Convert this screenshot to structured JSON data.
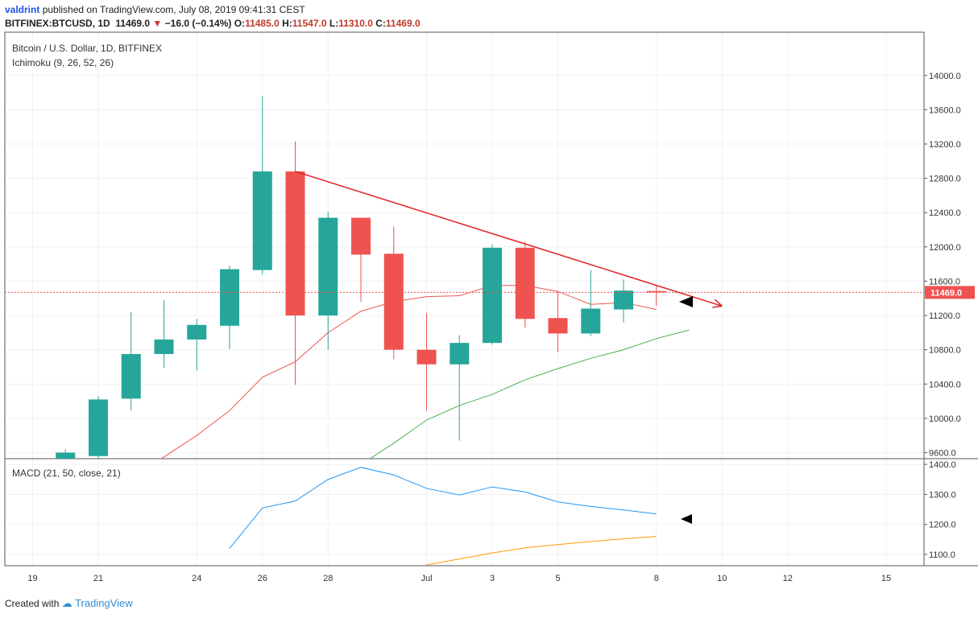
{
  "header": {
    "user": "valdrint",
    "published": "published on TradingView.com, July 08, 2019 09:41:31 CEST",
    "symbol": "BITFINEX:BTCUSD, 1D",
    "last": "11469.0",
    "change_arrow": "▼",
    "change": "−16.0 (−0.14%)",
    "o_label": "O:",
    "o_value": "11485.0",
    "h_label": "H:",
    "h_value": "11547.0",
    "l_label": "L:",
    "l_value": "11310.0",
    "c_label": "C:",
    "c_value": "11469.0"
  },
  "footer": {
    "created_with": "Created with",
    "brand": "TradingView"
  },
  "colors": {
    "up": "#26a69a",
    "down": "#ef5350",
    "tenkan": "#ef5350",
    "kijun": "#4caf50",
    "macd": "#2196f3",
    "signal": "#ff9800",
    "trendline": "#e02020",
    "price_line": "#ef5350"
  },
  "chart_data": [
    {
      "type": "candlestick",
      "title": "Bitcoin / U.S. Dollar, 1D, BITFINEX",
      "indicator_label": "Ichimoku (9, 26, 52, 26)",
      "ylim": [
        9600,
        14000
      ],
      "yticks": [
        9600,
        10000,
        10400,
        10800,
        11200,
        11600,
        12000,
        12400,
        12800,
        13200,
        13600,
        14000
      ],
      "ytick_labels": [
        "9600.0",
        "10000.0",
        "10400.0",
        "10800.0",
        "11200.0",
        "11600.0",
        "12000.0",
        "12400.0",
        "12800.0",
        "13200.0",
        "13600.0",
        "14000.0"
      ],
      "price_label": "11469.0",
      "last_price": 11469,
      "candles": [
        {
          "d": 20,
          "o": 9150,
          "h": 9640,
          "l": 9050,
          "c": 9600
        },
        {
          "d": 21,
          "o": 9560,
          "h": 10260,
          "l": 9500,
          "c": 10220
        },
        {
          "d": 22,
          "o": 10230,
          "h": 11240,
          "l": 10090,
          "c": 10750
        },
        {
          "d": 23,
          "o": 10750,
          "h": 11380,
          "l": 10590,
          "c": 10920
        },
        {
          "d": 24,
          "o": 10920,
          "h": 11160,
          "l": 10560,
          "c": 11090
        },
        {
          "d": 25,
          "o": 11080,
          "h": 11780,
          "l": 10810,
          "c": 11740
        },
        {
          "d": 26,
          "o": 11730,
          "h": 13760,
          "l": 11680,
          "c": 12880
        },
        {
          "d": 27,
          "o": 12880,
          "h": 13230,
          "l": 10390,
          "c": 11200
        },
        {
          "d": 28,
          "o": 11200,
          "h": 12410,
          "l": 10800,
          "c": 12340
        },
        {
          "d": 29,
          "o": 12340,
          "h": 12340,
          "l": 11360,
          "c": 11910
        },
        {
          "d": 30,
          "o": 11920,
          "h": 12240,
          "l": 10690,
          "c": 10800
        },
        {
          "d": 31,
          "o": 10800,
          "h": 11230,
          "l": 10090,
          "c": 10630
        },
        {
          "d": 32,
          "o": 10630,
          "h": 10970,
          "l": 9740,
          "c": 10880
        },
        {
          "d": 33,
          "o": 10880,
          "h": 12030,
          "l": 10860,
          "c": 11990
        },
        {
          "d": 34,
          "o": 11990,
          "h": 12060,
          "l": 11060,
          "c": 11160
        },
        {
          "d": 35,
          "o": 11170,
          "h": 11480,
          "l": 10770,
          "c": 10990
        },
        {
          "d": 36,
          "o": 10990,
          "h": 11730,
          "l": 10960,
          "c": 11280
        },
        {
          "d": 37,
          "o": 11270,
          "h": 11620,
          "l": 11120,
          "c": 11490
        },
        {
          "d": 38,
          "o": 11485,
          "h": 11547,
          "l": 11310,
          "c": 11469
        }
      ],
      "tenkan": [
        [
          22,
          9300
        ],
        [
          23,
          9550
        ],
        [
          24,
          9800
        ],
        [
          25,
          10090
        ],
        [
          26,
          10480
        ],
        [
          27,
          10660
        ],
        [
          28,
          11000
        ],
        [
          29,
          11250
        ],
        [
          30,
          11360
        ],
        [
          31,
          11420
        ],
        [
          32,
          11430
        ],
        [
          33,
          11550
        ],
        [
          34,
          11550
        ],
        [
          35,
          11480
        ],
        [
          36,
          11330
        ],
        [
          37,
          11350
        ],
        [
          38,
          11270
        ]
      ],
      "kijun": [
        [
          29,
          9460
        ],
        [
          30,
          9710
        ],
        [
          31,
          9980
        ],
        [
          32,
          10150
        ],
        [
          33,
          10280
        ],
        [
          34,
          10450
        ],
        [
          35,
          10580
        ],
        [
          36,
          10700
        ],
        [
          37,
          10800
        ],
        [
          38,
          10930
        ],
        [
          39,
          11030
        ]
      ],
      "trendline": {
        "start": [
          27,
          12880
        ],
        "end": [
          40,
          11310
        ]
      }
    },
    {
      "type": "line",
      "title": "MACD (21, 50, close, 21)",
      "ylim": [
        1060,
        1420
      ],
      "yticks": [
        1100,
        1200,
        1300,
        1400
      ],
      "ytick_labels": [
        "1100.0",
        "1200.0",
        "1300.0",
        "1400.0"
      ],
      "series": [
        {
          "values": [
            [
              25,
              1120
            ],
            [
              26,
              1255
            ],
            [
              27,
              1278
            ],
            [
              28,
              1350
            ],
            [
              29,
              1390
            ],
            [
              30,
              1365
            ],
            [
              31,
              1320
            ],
            [
              32,
              1298
            ],
            [
              33,
              1325
            ],
            [
              34,
              1308
            ],
            [
              35,
              1275
            ],
            [
              36,
              1260
            ],
            [
              37,
              1248
            ],
            [
              38,
              1235
            ]
          ]
        },
        {
          "values": [
            [
              31,
              1065
            ],
            [
              32,
              1085
            ],
            [
              33,
              1105
            ],
            [
              34,
              1122
            ],
            [
              35,
              1133
            ],
            [
              36,
              1143
            ],
            [
              37,
              1152
            ],
            [
              38,
              1160
            ]
          ]
        }
      ]
    }
  ],
  "x_axis": {
    "ticks": [
      {
        "d": 19,
        "label": "19"
      },
      {
        "d": 21,
        "label": "21"
      },
      {
        "d": 24,
        "label": "24"
      },
      {
        "d": 26,
        "label": "26"
      },
      {
        "d": 28,
        "label": "28"
      },
      {
        "d": 31,
        "label": "Jul"
      },
      {
        "d": 33,
        "label": "3"
      },
      {
        "d": 35,
        "label": "5"
      },
      {
        "d": 38,
        "label": "8"
      },
      {
        "d": 40,
        "label": "10"
      },
      {
        "d": 42,
        "label": "12"
      },
      {
        "d": 45,
        "label": "15"
      }
    ]
  }
}
